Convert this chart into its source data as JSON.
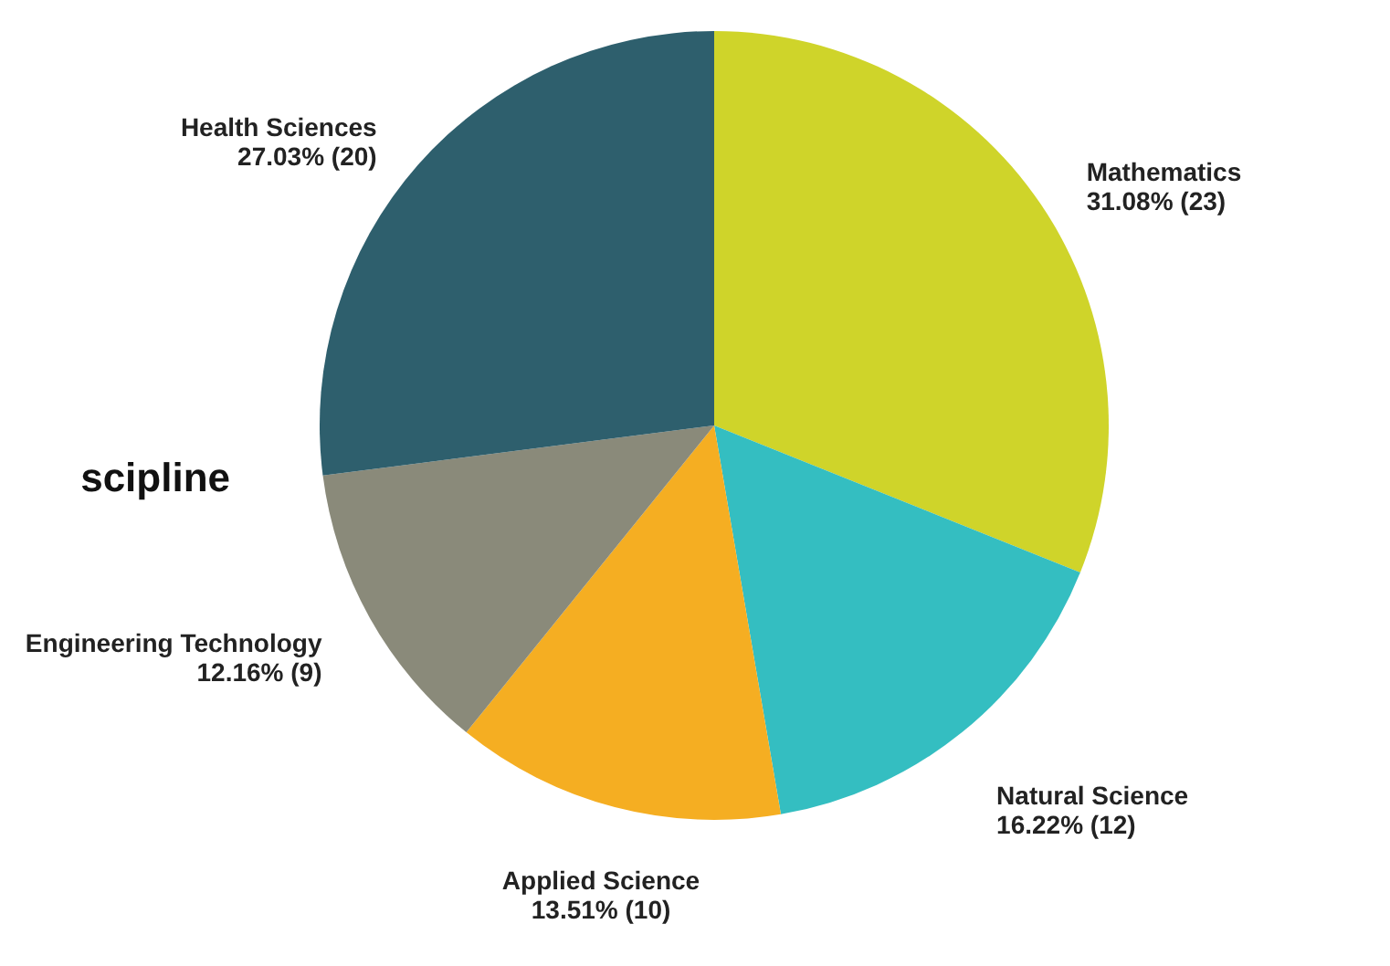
{
  "chart_data": {
    "type": "pie",
    "categories": [
      "Mathematics",
      "Natural Science",
      "Applied Science",
      "Engineering Technology",
      "Health Sciences"
    ],
    "values": [
      23,
      12,
      10,
      9,
      20
    ],
    "value_labels": [
      "31.08% (23)",
      "16.22% (12)",
      "13.51% (10)",
      "12.16% (9)",
      "27.03% (20)"
    ],
    "colors": [
      "#cfd42a",
      "#34bec1",
      "#f5ae22",
      "#8a8a7a",
      "#2e5f6d"
    ],
    "annotations": [
      "scipline"
    ]
  }
}
